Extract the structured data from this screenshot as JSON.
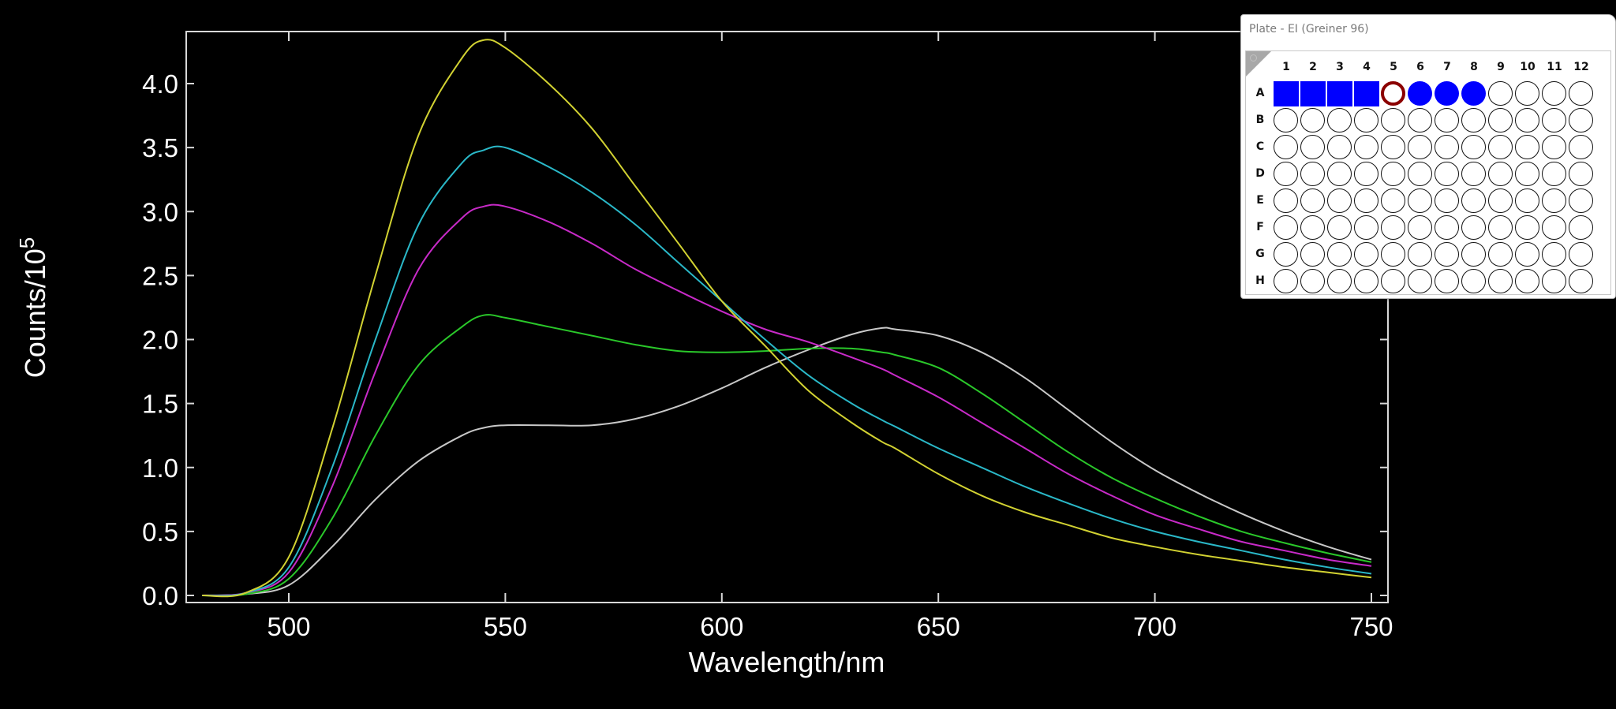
{
  "plate_window": {
    "title": "Plate - EI (Greiner 96)",
    "columns": [
      "1",
      "2",
      "3",
      "4",
      "5",
      "6",
      "7",
      "8",
      "9",
      "10",
      "11",
      "12"
    ],
    "rows": [
      "A",
      "B",
      "C",
      "D",
      "E",
      "F",
      "G",
      "H"
    ],
    "row_A_states": [
      "square",
      "square",
      "square",
      "square",
      "ring",
      "filled",
      "filled",
      "filled",
      "empty",
      "empty",
      "empty",
      "empty"
    ],
    "other_rows_state": "empty",
    "colors": {
      "selected_fill": "#0000ff",
      "ring": "#8b0000",
      "empty_outline": "#111111",
      "background": "#ffffff"
    }
  },
  "chart": {
    "xlabel": "Wavelength/nm",
    "ylabel_base": "Counts/10",
    "ylabel_exp": "5",
    "x_ticks": [
      "500",
      "550",
      "600",
      "650",
      "700",
      "750"
    ],
    "y_ticks": [
      "0.0",
      "0.5",
      "1.0",
      "1.5",
      "2.0",
      "2.5",
      "3.0",
      "3.5",
      "4.0"
    ]
  },
  "chart_data": {
    "type": "line",
    "title": "",
    "xlabel": "Wavelength/nm",
    "ylabel": "Counts/10^5",
    "xlim": [
      476,
      756
    ],
    "ylim": [
      -0.08,
      4.4
    ],
    "x_ticks": [
      500,
      550,
      600,
      650,
      700,
      750
    ],
    "y_ticks": [
      0.0,
      0.5,
      1.0,
      1.5,
      2.0,
      2.5,
      3.0,
      3.5,
      4.0
    ],
    "grid": false,
    "legend": "none",
    "background": "#000000",
    "x": [
      480,
      490,
      500,
      510,
      520,
      530,
      540,
      545,
      550,
      560,
      570,
      580,
      590,
      600,
      610,
      620,
      630,
      637,
      640,
      650,
      660,
      670,
      680,
      690,
      700,
      710,
      720,
      730,
      740,
      750
    ],
    "series": [
      {
        "name": "yellow",
        "color": "#d2d232",
        "values": [
          0,
          0.02,
          0.3,
          1.3,
          2.5,
          3.6,
          4.2,
          4.34,
          4.28,
          4.0,
          3.65,
          3.2,
          2.75,
          2.3,
          1.95,
          1.6,
          1.35,
          1.2,
          1.15,
          0.95,
          0.78,
          0.65,
          0.55,
          0.45,
          0.38,
          0.32,
          0.27,
          0.22,
          0.18,
          0.14
        ]
      },
      {
        "name": "cyan",
        "color": "#2ab8c8",
        "values": [
          0,
          0.02,
          0.22,
          1.0,
          2.0,
          2.9,
          3.38,
          3.48,
          3.5,
          3.35,
          3.15,
          2.9,
          2.6,
          2.3,
          2.0,
          1.72,
          1.5,
          1.37,
          1.32,
          1.15,
          1.0,
          0.85,
          0.72,
          0.6,
          0.5,
          0.42,
          0.35,
          0.28,
          0.22,
          0.17
        ]
      },
      {
        "name": "magenta",
        "color": "#c82ac8",
        "values": [
          0,
          0.02,
          0.18,
          0.85,
          1.75,
          2.55,
          2.95,
          3.04,
          3.04,
          2.92,
          2.75,
          2.55,
          2.38,
          2.22,
          2.08,
          1.98,
          1.86,
          1.77,
          1.72,
          1.55,
          1.35,
          1.15,
          0.95,
          0.78,
          0.63,
          0.52,
          0.42,
          0.35,
          0.28,
          0.23
        ]
      },
      {
        "name": "green",
        "color": "#2ac82a",
        "values": [
          0,
          0.01,
          0.13,
          0.6,
          1.25,
          1.8,
          2.1,
          2.19,
          2.17,
          2.1,
          2.03,
          1.96,
          1.91,
          1.9,
          1.91,
          1.93,
          1.93,
          1.9,
          1.88,
          1.78,
          1.58,
          1.35,
          1.12,
          0.92,
          0.76,
          0.62,
          0.5,
          0.41,
          0.33,
          0.26
        ]
      },
      {
        "name": "white",
        "color": "#c8c8c8",
        "values": [
          0,
          0.01,
          0.08,
          0.38,
          0.75,
          1.05,
          1.25,
          1.31,
          1.33,
          1.33,
          1.33,
          1.38,
          1.48,
          1.62,
          1.78,
          1.92,
          2.04,
          2.09,
          2.08,
          2.03,
          1.9,
          1.7,
          1.45,
          1.2,
          0.98,
          0.8,
          0.64,
          0.5,
          0.38,
          0.28
        ]
      }
    ]
  }
}
